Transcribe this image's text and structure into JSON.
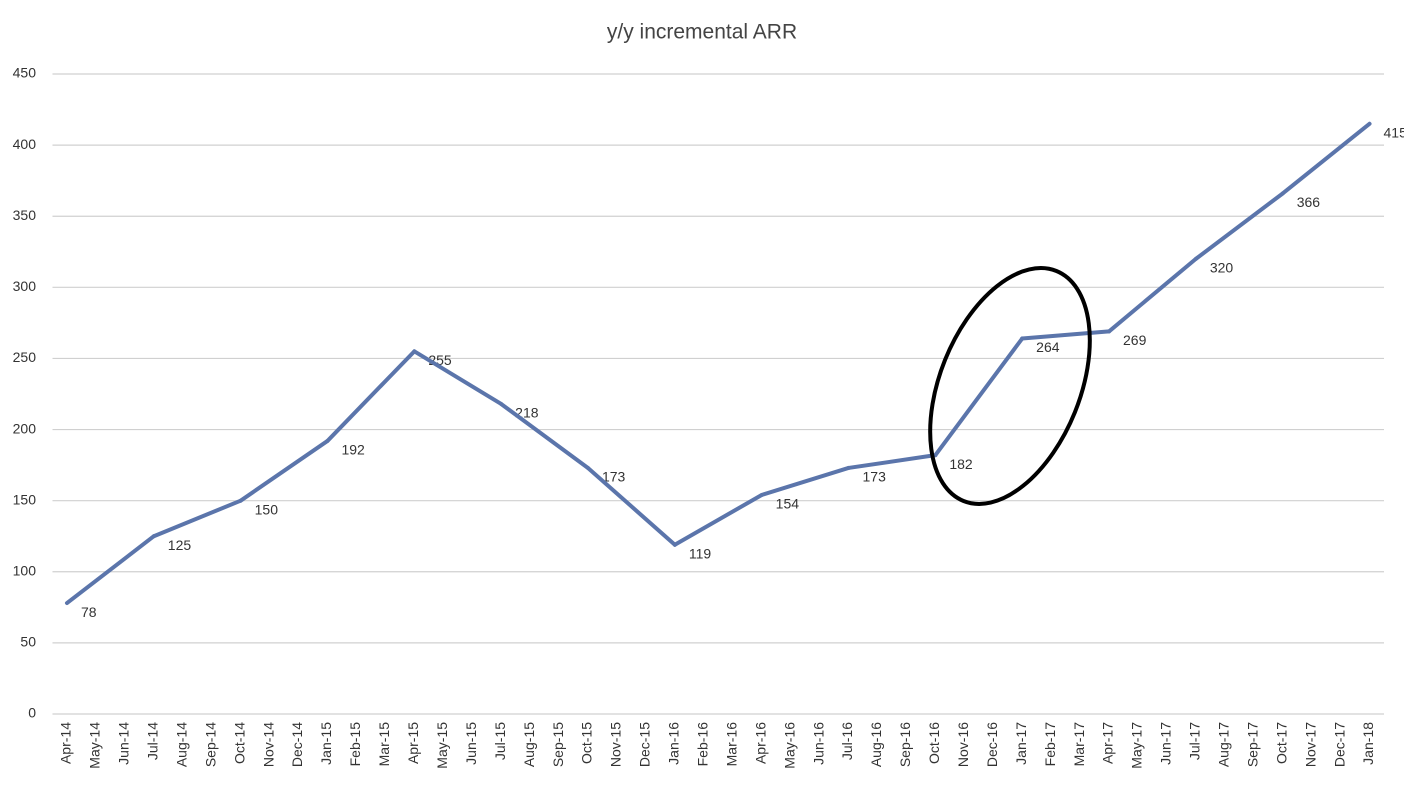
{
  "chart_data": {
    "type": "line",
    "title": "y/y incremental ARR",
    "categories": [
      "Apr-14",
      "May-14",
      "Jun-14",
      "Jul-14",
      "Aug-14",
      "Sep-14",
      "Oct-14",
      "Nov-14",
      "Dec-14",
      "Jan-15",
      "Feb-15",
      "Mar-15",
      "Apr-15",
      "May-15",
      "Jun-15",
      "Jul-15",
      "Aug-15",
      "Sep-15",
      "Oct-15",
      "Nov-15",
      "Dec-15",
      "Jan-16",
      "Feb-16",
      "Mar-16",
      "Apr-16",
      "May-16",
      "Jun-16",
      "Jul-16",
      "Aug-16",
      "Sep-16",
      "Oct-16",
      "Nov-16",
      "Dec-16",
      "Jan-17",
      "Feb-17",
      "Mar-17",
      "Apr-17",
      "May-17",
      "Jun-17",
      "Jul-17",
      "Aug-17",
      "Sep-17",
      "Oct-17",
      "Nov-17",
      "Dec-17",
      "Jan-18"
    ],
    "values": [
      78,
      null,
      null,
      125,
      null,
      null,
      150,
      null,
      null,
      192,
      null,
      null,
      255,
      null,
      null,
      218,
      null,
      null,
      173,
      null,
      null,
      119,
      null,
      null,
      154,
      null,
      null,
      173,
      null,
      null,
      182,
      null,
      null,
      264,
      null,
      null,
      269,
      null,
      null,
      320,
      null,
      null,
      366,
      null,
      null,
      415
    ],
    "color": "#5b75ab",
    "connect_gaps": true,
    "data_labels": true,
    "ylim": [
      0,
      450
    ],
    "yticks": [
      0,
      50,
      100,
      150,
      200,
      250,
      300,
      350,
      400,
      450
    ],
    "grid": true
  }
}
